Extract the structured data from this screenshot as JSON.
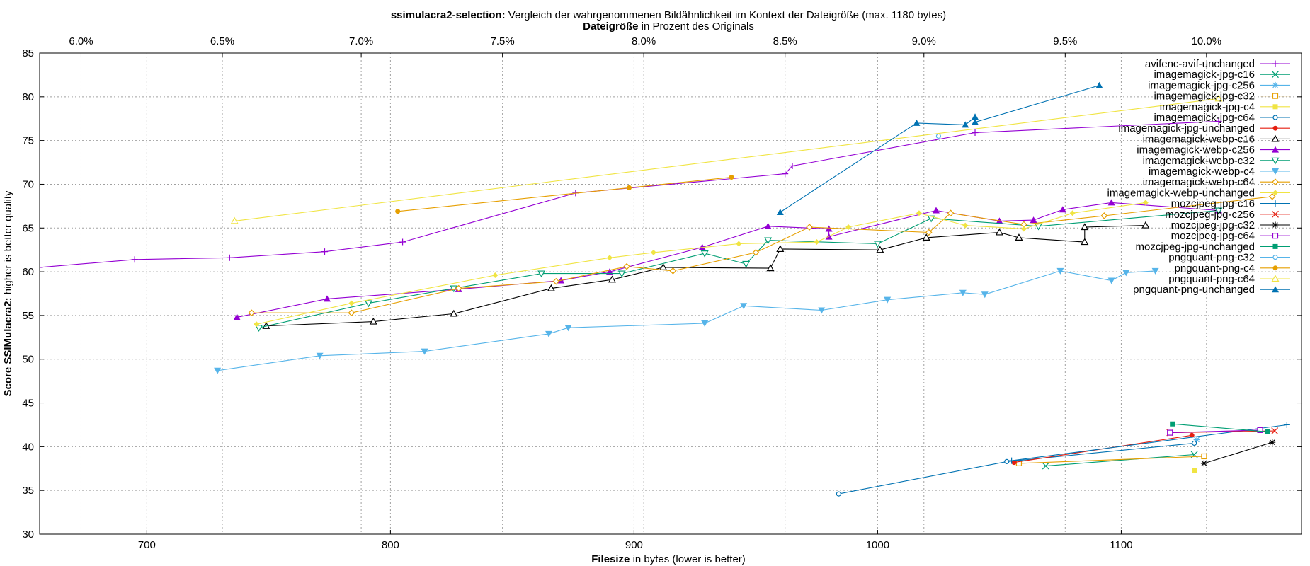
{
  "chart_data": {
    "type": "line",
    "title_bold": "ssimulacra2-selection:",
    "title_rest": " Vergleich der wahrgenommenen Bildähnlichkeit im Kontext der Dateigröße (max. 1180 bytes)",
    "x2label_bold": "Dateigröße",
    "x2label_rest": " in Prozent des Originals",
    "xlabel_bold": "Filesize",
    "xlabel_rest": " in bytes (lower is better)",
    "ylabel_bold": "Score SSIMulacra2:",
    "ylabel_rest": " higher is better quality",
    "xlim": [
      656,
      1174
    ],
    "ylim": [
      30,
      85
    ],
    "x_ticks": [
      700,
      800,
      900,
      1000,
      1100
    ],
    "y_ticks": [
      30,
      35,
      40,
      45,
      50,
      55,
      60,
      65,
      70,
      75,
      80,
      85
    ],
    "x2_ticks": [
      {
        "x": 673,
        "label": "6.0%"
      },
      {
        "x": 731,
        "label": "6.5%"
      },
      {
        "x": 788,
        "label": "7.0%"
      },
      {
        "x": 846,
        "label": "7.5%"
      },
      {
        "x": 904,
        "label": "8.0%"
      },
      {
        "x": 962,
        "label": "8.5%"
      },
      {
        "x": 1019,
        "label": "9.0%"
      },
      {
        "x": 1077,
        "label": "9.5%"
      },
      {
        "x": 1135,
        "label": "10.0%"
      }
    ],
    "grid": true,
    "legend_position": "top-right",
    "series": [
      {
        "name": "avifenc-avif-unchanged",
        "color": "#9400d3",
        "marker": "plus",
        "points": [
          [
            656,
            60.5
          ],
          [
            695,
            61.4
          ],
          [
            734,
            61.6
          ],
          [
            773,
            62.3
          ],
          [
            805,
            63.4
          ],
          [
            876,
            69.0
          ],
          [
            962,
            71.2
          ],
          [
            965,
            72.1
          ],
          [
            1040,
            75.9
          ],
          [
            1140,
            77.2
          ]
        ]
      },
      {
        "name": "imagemagick-jpg-c16",
        "color": "#009e73",
        "marker": "x",
        "points": [
          [
            1069,
            37.8
          ],
          [
            1130,
            39.1
          ]
        ]
      },
      {
        "name": "imagemagick-jpg-c256",
        "color": "#56b4e9",
        "marker": "star",
        "points": [
          [
            1131,
            40.8
          ]
        ]
      },
      {
        "name": "imagemagick-jpg-c32",
        "color": "#e69f00",
        "marker": "square-open",
        "points": [
          [
            1058,
            38.1
          ],
          [
            1134,
            38.9
          ]
        ]
      },
      {
        "name": "imagemagick-jpg-c4",
        "color": "#f0e442",
        "marker": "square-filled",
        "points": [
          [
            1130,
            37.3
          ]
        ]
      },
      {
        "name": "imagemagick-jpg-c64",
        "color": "#0072b2",
        "marker": "circle-open",
        "points": [
          [
            984,
            34.6
          ],
          [
            1053,
            38.3
          ],
          [
            1130,
            40.4
          ]
        ]
      },
      {
        "name": "imagemagick-jpg-unchanged",
        "color": "#e51e10",
        "marker": "circle-filled",
        "points": [
          [
            1056,
            38.2
          ],
          [
            1129,
            41.3
          ]
        ]
      },
      {
        "name": "imagemagick-webp-c16",
        "color": "#000000",
        "marker": "triangle-open",
        "points": [
          [
            749,
            53.8
          ],
          [
            793,
            54.3
          ],
          [
            826,
            55.2
          ],
          [
            866,
            58.1
          ],
          [
            891,
            59.1
          ],
          [
            912,
            60.5
          ],
          [
            956,
            60.4
          ],
          [
            960,
            62.6
          ],
          [
            1001,
            62.5
          ],
          [
            1020,
            63.9
          ],
          [
            1050,
            64.5
          ],
          [
            1058,
            63.9
          ],
          [
            1085,
            63.4
          ],
          [
            1085,
            65.1
          ],
          [
            1110,
            65.3
          ]
        ]
      },
      {
        "name": "imagemagick-webp-c256",
        "color": "#9400d3",
        "marker": "triangle-filled",
        "points": [
          [
            737,
            54.8
          ],
          [
            774,
            56.9
          ],
          [
            828,
            58.0
          ],
          [
            870,
            59.0
          ],
          [
            890,
            60.0
          ],
          [
            928,
            62.8
          ],
          [
            955,
            65.2
          ],
          [
            980,
            64.9
          ],
          [
            980,
            64.0
          ],
          [
            1024,
            67.0
          ],
          [
            1050,
            65.8
          ],
          [
            1064,
            65.9
          ],
          [
            1076,
            67.1
          ],
          [
            1096,
            67.9
          ],
          [
            1140,
            67.0
          ]
        ]
      },
      {
        "name": "imagemagick-webp-c32",
        "color": "#009e73",
        "marker": "triangle-down-open",
        "points": [
          [
            746,
            53.6
          ],
          [
            791,
            56.4
          ],
          [
            826,
            58.1
          ],
          [
            862,
            59.8
          ],
          [
            895,
            59.8
          ],
          [
            929,
            62.1
          ],
          [
            946,
            60.9
          ],
          [
            955,
            63.6
          ],
          [
            1000,
            63.2
          ],
          [
            1022,
            66.1
          ],
          [
            1066,
            65.2
          ],
          [
            1140,
            67.0
          ]
        ]
      },
      {
        "name": "imagemagick-webp-c4",
        "color": "#56b4e9",
        "marker": "triangle-down-filled",
        "points": [
          [
            729,
            48.7
          ],
          [
            771,
            50.4
          ],
          [
            814,
            50.9
          ],
          [
            865,
            52.9
          ],
          [
            873,
            53.6
          ],
          [
            929,
            54.1
          ],
          [
            945,
            56.1
          ],
          [
            977,
            55.6
          ],
          [
            1004,
            56.8
          ],
          [
            1035,
            57.6
          ],
          [
            1044,
            57.4
          ],
          [
            1075,
            60.1
          ],
          [
            1096,
            59.0
          ],
          [
            1102,
            59.9
          ],
          [
            1114,
            60.1
          ]
        ]
      },
      {
        "name": "imagemagick-webp-c64",
        "color": "#e69f00",
        "marker": "diamond-open",
        "points": [
          [
            743,
            55.3
          ],
          [
            784,
            55.3
          ],
          [
            828,
            58.1
          ],
          [
            868,
            58.9
          ],
          [
            897,
            60.6
          ],
          [
            916,
            60.1
          ],
          [
            950,
            62.2
          ],
          [
            972,
            65.1
          ],
          [
            1021,
            64.5
          ],
          [
            1030,
            66.7
          ],
          [
            1060,
            65.4
          ],
          [
            1093,
            66.4
          ],
          [
            1162,
            68.6
          ]
        ]
      },
      {
        "name": "imagemagick-webp-unchanged",
        "color": "#f0e442",
        "marker": "diamond-filled",
        "points": [
          [
            745,
            54.0
          ],
          [
            784,
            56.4
          ],
          [
            843,
            59.6
          ],
          [
            890,
            61.6
          ],
          [
            908,
            62.2
          ],
          [
            943,
            63.2
          ],
          [
            975,
            63.4
          ],
          [
            988,
            65.1
          ],
          [
            1017,
            66.7
          ],
          [
            1036,
            65.3
          ],
          [
            1060,
            64.9
          ],
          [
            1080,
            66.7
          ],
          [
            1110,
            67.9
          ]
        ]
      },
      {
        "name": "mozcjpeg-jpg-c16",
        "color": "#0072b2",
        "marker": "plus",
        "points": [
          [
            1055,
            38.4
          ],
          [
            1168,
            42.5
          ]
        ]
      },
      {
        "name": "mozcjpeg-jpg-c256",
        "color": "#e51e10",
        "marker": "x",
        "points": [
          [
            1120,
            41.6
          ],
          [
            1163,
            41.8
          ]
        ]
      },
      {
        "name": "mozcjpeg-jpg-c32",
        "color": "#000000",
        "marker": "star",
        "points": [
          [
            1134,
            38.1
          ],
          [
            1162,
            40.5
          ]
        ]
      },
      {
        "name": "mozcjpeg-jpg-c64",
        "color": "#9400d3",
        "marker": "square-open",
        "points": [
          [
            1120,
            41.6
          ],
          [
            1157,
            41.9
          ]
        ]
      },
      {
        "name": "mozcjpeg-jpg-unchanged",
        "color": "#009e73",
        "marker": "square-filled",
        "points": [
          [
            1121,
            42.6
          ],
          [
            1160,
            41.7
          ]
        ]
      },
      {
        "name": "pngquant-png-c32",
        "color": "#56b4e9",
        "marker": "circle-open",
        "points": [
          [
            1025,
            75.5
          ]
        ]
      },
      {
        "name": "pngquant-png-c4",
        "color": "#e69f00",
        "marker": "circle-filled",
        "points": [
          [
            803,
            66.9
          ],
          [
            898,
            69.6
          ],
          [
            940,
            70.8
          ]
        ]
      },
      {
        "name": "pngquant-png-c64",
        "color": "#f0e442",
        "marker": "triangle-open",
        "points": [
          [
            736,
            65.8
          ],
          [
            1140,
            79.8
          ]
        ]
      },
      {
        "name": "pngquant-png-unchanged",
        "color": "#0072b2",
        "marker": "triangle-filled",
        "points": [
          [
            960,
            66.8
          ],
          [
            1016,
            77.0
          ],
          [
            1036,
            76.8
          ],
          [
            1040,
            77.7
          ],
          [
            1040,
            77.1
          ],
          [
            1091,
            81.3
          ]
        ]
      }
    ]
  }
}
